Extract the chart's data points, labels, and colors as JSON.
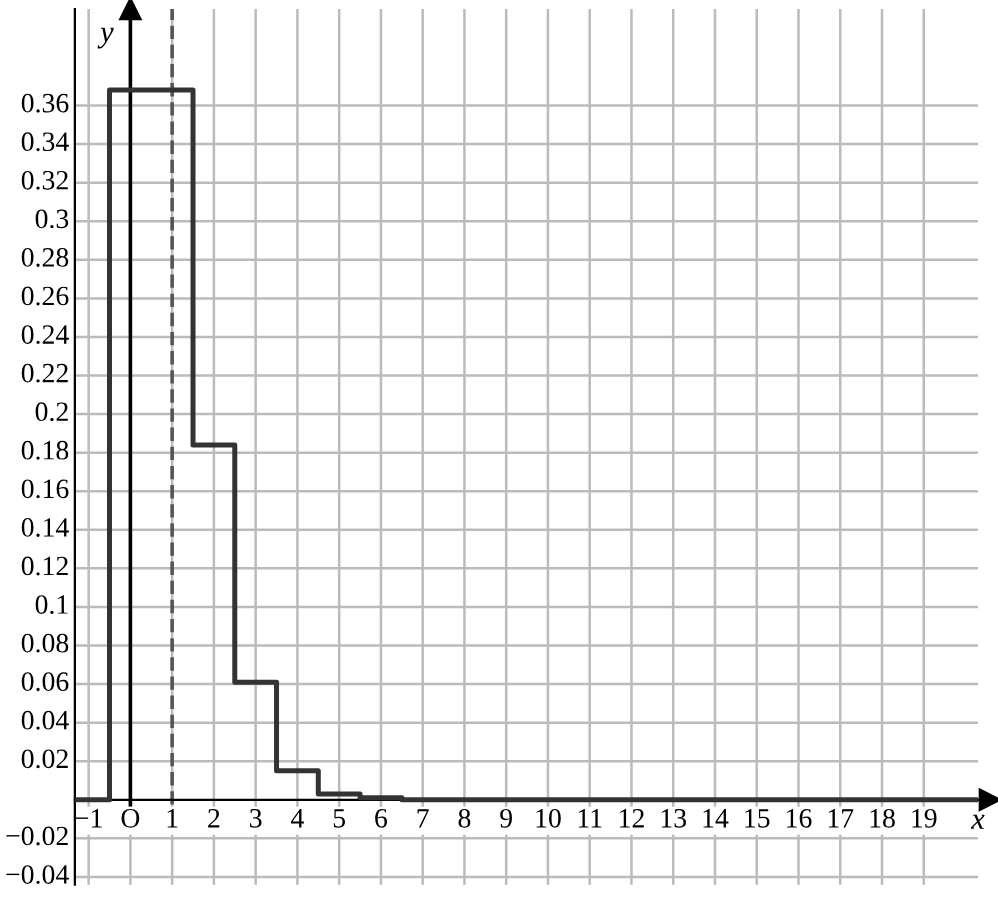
{
  "chart_data": {
    "type": "step",
    "xlabel": "x",
    "ylabel": "y",
    "x": [
      -1.33,
      -0.5,
      1.5,
      2.5,
      3.5,
      4.5,
      5.5,
      6.5,
      20.3
    ],
    "series": [
      {
        "color": "#333333",
        "values": [
          0,
          0.368,
          0.184,
          0.061,
          0.015,
          0.003,
          0.001,
          0,
          0
        ]
      }
    ],
    "xlim": [
      -1.33,
      20.3
    ],
    "ylim": [
      -0.044,
      0.41
    ],
    "xticks": [
      {
        "value": -1,
        "label": "−1"
      },
      {
        "value": 0,
        "label": "O"
      },
      1,
      2,
      3,
      4,
      5,
      6,
      7,
      8,
      9,
      10,
      11,
      12,
      13,
      14,
      15,
      16,
      17,
      18,
      19
    ],
    "yticks": [
      {
        "value": -0.04,
        "label": "−0.04"
      },
      {
        "value": -0.02,
        "label": "−0.02"
      },
      0.02,
      0.04,
      0.06,
      0.08,
      0.1,
      0.12,
      0.14,
      0.16,
      0.18,
      0.2,
      0.22,
      0.24,
      0.26,
      0.28,
      0.3,
      0.32,
      0.34,
      0.36
    ],
    "ref_lines": [
      {
        "axis": "x",
        "value": 1,
        "color": "#555555",
        "line_style": "dashed"
      }
    ],
    "grid": true,
    "marker": "none",
    "line_style": "solid"
  }
}
